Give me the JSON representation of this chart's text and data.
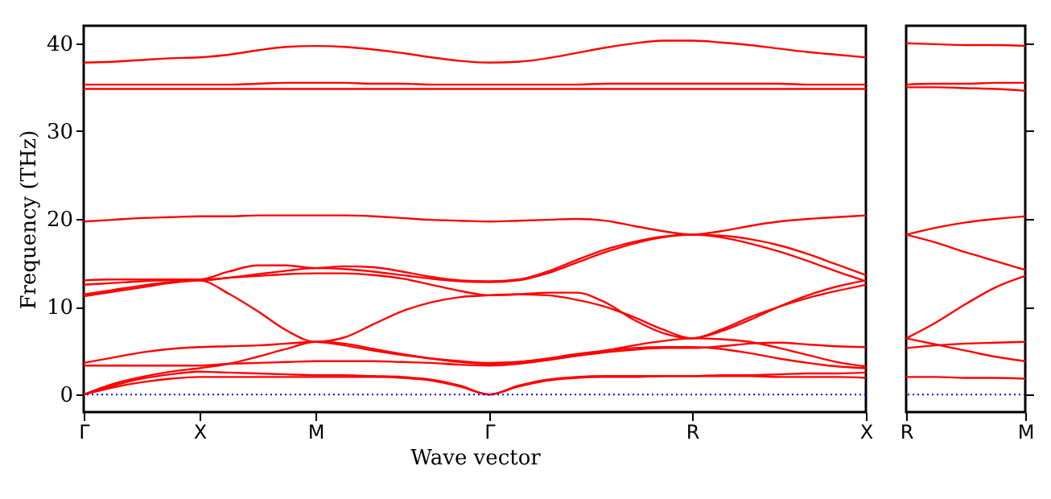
{
  "chart_data": [
    {
      "type": "line",
      "xlabel": "Wave vector",
      "ylabel": "Frequency (THz)",
      "categories": [
        "Γ",
        null,
        null,
        null,
        "X",
        null,
        null,
        null,
        "M",
        null,
        null,
        null,
        null,
        null,
        "Γ",
        null,
        null,
        null,
        null,
        null,
        null,
        "R",
        null,
        null,
        null,
        null,
        null,
        "X"
      ],
      "ylim": [
        -2,
        42
      ],
      "yticks": [
        0,
        10,
        20,
        30,
        40
      ],
      "grid": false,
      "ref_lines": [
        {
          "axis": "y",
          "value": 0,
          "color": "#0000ff",
          "line_style": "dotted"
        }
      ],
      "series": [
        {
          "color": "#ff0000",
          "values": [
            0,
            0.8,
            1.4,
            1.8,
            2.0,
            2.0,
            2.0,
            2.0,
            2.0,
            2.0,
            2.0,
            1.9,
            1.6,
            0.9,
            0,
            0.9,
            1.6,
            1.9,
            2.0,
            2.0,
            2.1,
            2.1,
            2.1,
            2.1,
            2.0,
            2.0,
            2.0,
            1.9
          ]
        },
        {
          "color": "#ff0000",
          "values": [
            0,
            1.0,
            1.8,
            2.3,
            2.6,
            2.5,
            2.4,
            2.3,
            2.2,
            2.2,
            2.1,
            2.0,
            1.7,
            1.0,
            0,
            1.0,
            1.7,
            2.0,
            2.1,
            2.1,
            2.1,
            2.1,
            2.2,
            2.2,
            2.3,
            2.4,
            2.4,
            2.5
          ]
        },
        {
          "color": "#ff0000",
          "values": [
            0,
            1.2,
            2.0,
            2.6,
            3.0,
            3.5,
            4.3,
            5.2,
            6.0,
            5.8,
            5.2,
            4.6,
            4.1,
            3.7,
            3.5,
            3.7,
            4.1,
            4.6,
            5.0,
            5.3,
            5.4,
            5.4,
            5.2,
            4.7,
            4.1,
            3.6,
            3.2,
            3.0
          ]
        },
        {
          "color": "#ff0000",
          "values": [
            3.3,
            3.3,
            3.3,
            3.3,
            3.3,
            3.5,
            3.6,
            3.7,
            3.8,
            3.8,
            3.8,
            3.7,
            3.6,
            3.4,
            3.3,
            3.5,
            3.9,
            4.4,
            5.0,
            5.6,
            6.1,
            6.4,
            6.3,
            6.0,
            5.3,
            4.5,
            3.7,
            3.2
          ]
        },
        {
          "color": "#ff0000",
          "values": [
            3.6,
            4.2,
            4.8,
            5.2,
            5.4,
            5.5,
            5.6,
            5.8,
            6.0,
            5.6,
            5.0,
            4.5,
            4.1,
            3.8,
            3.6,
            3.7,
            4.0,
            4.4,
            4.8,
            5.1,
            5.3,
            5.3,
            5.5,
            5.8,
            5.9,
            5.7,
            5.5,
            5.4
          ]
        },
        {
          "color": "#ff0000",
          "values": [
            11.2,
            11.7,
            12.2,
            12.7,
            13.0,
            11.5,
            9.5,
            7.3,
            6.0,
            6.5,
            8.0,
            9.5,
            10.5,
            11.1,
            11.3,
            11.4,
            11.3,
            10.8,
            10.0,
            8.8,
            7.4,
            6.4,
            7.4,
            8.8,
            10.0,
            11.0,
            11.8,
            12.5
          ]
        },
        {
          "color": "#ff0000",
          "values": [
            11.4,
            11.9,
            12.4,
            12.8,
            13.0,
            13.3,
            13.5,
            13.7,
            13.8,
            13.8,
            13.6,
            13.2,
            12.5,
            11.8,
            11.3,
            11.4,
            11.6,
            11.6,
            10.5,
            8.5,
            7.0,
            6.4,
            7.2,
            8.5,
            10.0,
            11.3,
            12.3,
            13.0
          ]
        },
        {
          "color": "#ff0000",
          "values": [
            12.5,
            12.7,
            12.9,
            13.0,
            13.0,
            13.3,
            13.7,
            14.1,
            14.4,
            14.3,
            14.0,
            13.6,
            13.2,
            12.9,
            12.8,
            13.0,
            13.8,
            15.0,
            16.2,
            17.2,
            17.9,
            18.2,
            17.9,
            17.2,
            16.3,
            15.2,
            14.0,
            12.9
          ]
        },
        {
          "color": "#ff0000",
          "values": [
            13.0,
            13.1,
            13.1,
            13.1,
            13.1,
            14.0,
            14.7,
            14.7,
            14.4,
            14.6,
            14.5,
            14.0,
            13.4,
            13.0,
            12.9,
            13.1,
            14.0,
            15.3,
            16.5,
            17.4,
            18.0,
            18.2,
            18.1,
            17.7,
            17.0,
            16.0,
            14.8,
            13.6
          ]
        },
        {
          "color": "#ff0000",
          "values": [
            19.7,
            19.9,
            20.1,
            20.2,
            20.3,
            20.3,
            20.4,
            20.4,
            20.4,
            20.4,
            20.3,
            20.1,
            19.9,
            19.8,
            19.7,
            19.8,
            19.9,
            20.0,
            19.8,
            19.2,
            18.6,
            18.2,
            18.6,
            19.2,
            19.7,
            20.0,
            20.2,
            20.4
          ]
        },
        {
          "color": "#ff0000",
          "values": [
            34.8,
            34.8,
            34.8,
            34.8,
            34.8,
            34.8,
            34.8,
            34.8,
            34.8,
            34.8,
            34.8,
            34.8,
            34.8,
            34.8,
            34.8,
            34.8,
            34.8,
            34.8,
            34.8,
            34.8,
            34.8,
            34.8,
            34.8,
            34.8,
            34.8,
            34.8,
            34.8,
            34.8
          ]
        },
        {
          "color": "#ff0000",
          "values": [
            35.3,
            35.3,
            35.3,
            35.3,
            35.3,
            35.3,
            35.4,
            35.5,
            35.5,
            35.5,
            35.4,
            35.4,
            35.3,
            35.3,
            35.3,
            35.3,
            35.3,
            35.3,
            35.4,
            35.4,
            35.4,
            35.4,
            35.4,
            35.4,
            35.4,
            35.3,
            35.3,
            35.3
          ]
        },
        {
          "color": "#ff0000",
          "values": [
            37.8,
            37.9,
            38.1,
            38.3,
            38.4,
            38.7,
            39.2,
            39.6,
            39.7,
            39.6,
            39.3,
            38.9,
            38.4,
            38.0,
            37.8,
            37.9,
            38.3,
            38.9,
            39.5,
            40.0,
            40.3,
            40.3,
            40.1,
            39.8,
            39.4,
            39.0,
            38.7,
            38.4
          ]
        }
      ]
    },
    {
      "type": "line",
      "categories": [
        "R",
        null,
        null,
        null,
        "M"
      ],
      "ylim": [
        -2,
        42
      ],
      "yticks": [
        0,
        10,
        20,
        30,
        40
      ],
      "tick_labels": "x",
      "grid": false,
      "ref_lines": [
        {
          "axis": "y",
          "value": 0,
          "color": "#0000ff",
          "line_style": "dotted"
        }
      ],
      "series": [
        {
          "color": "#ff0000",
          "values": [
            2.0,
            2.0,
            1.9,
            1.9,
            1.8
          ]
        },
        {
          "color": "#ff0000",
          "values": [
            5.3,
            5.6,
            5.8,
            5.9,
            6.0
          ]
        },
        {
          "color": "#ff0000",
          "values": [
            6.4,
            5.7,
            5.0,
            4.3,
            3.8
          ]
        },
        {
          "color": "#ff0000",
          "values": [
            6.4,
            8.2,
            10.3,
            12.2,
            13.5
          ]
        },
        {
          "color": "#ff0000",
          "values": [
            18.2,
            17.3,
            16.2,
            15.2,
            14.2
          ]
        },
        {
          "color": "#ff0000",
          "values": [
            18.2,
            19.0,
            19.6,
            20.0,
            20.3
          ]
        },
        {
          "color": "#ff0000",
          "values": [
            35.0,
            35.0,
            34.9,
            34.8,
            34.6
          ]
        },
        {
          "color": "#ff0000",
          "values": [
            35.3,
            35.4,
            35.4,
            35.5,
            35.5
          ]
        },
        {
          "color": "#ff0000",
          "values": [
            40.0,
            39.9,
            39.8,
            39.8,
            39.7
          ]
        }
      ]
    }
  ]
}
